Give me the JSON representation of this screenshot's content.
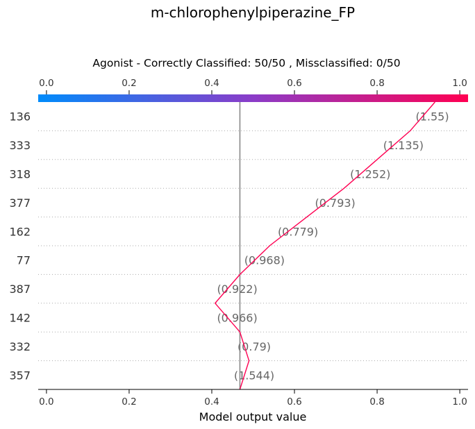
{
  "chart_data": {
    "type": "line",
    "title": "m-chlorophenylpiperazine_FP",
    "subtitle": "Agonist - Correctly Classified: 50/50 , Missclassified: 0/50",
    "xlabel": "Model output value",
    "xlim": [
      -0.02,
      1.02
    ],
    "xticks": [
      "0.0",
      "0.2",
      "0.4",
      "0.6",
      "0.8",
      "1.0"
    ],
    "xtick_values": [
      0.0,
      0.2,
      0.4,
      0.6,
      0.8,
      1.0
    ],
    "base_value": 0.468,
    "colorbar": {
      "from": "#008bfb",
      "mid": "#8b3cc8",
      "to": "#ff0052"
    },
    "line_color": "#ff0052",
    "features": [
      "136",
      "333",
      "318",
      "377",
      "162",
      "77",
      "387",
      "142",
      "332",
      "357"
    ],
    "feature_values": [
      "(1.55)",
      "(1.135)",
      "(1.252)",
      "(0.793)",
      "(0.779)",
      "(0.968)",
      "(0.922)",
      "(0.966)",
      "(0.79)",
      "(1.544)"
    ],
    "path_x": [
      0.94,
      0.88,
      0.8,
      0.72,
      0.63,
      0.54,
      0.468,
      0.408,
      0.468,
      0.49,
      0.468
    ],
    "grid": "dotted horizontal"
  }
}
